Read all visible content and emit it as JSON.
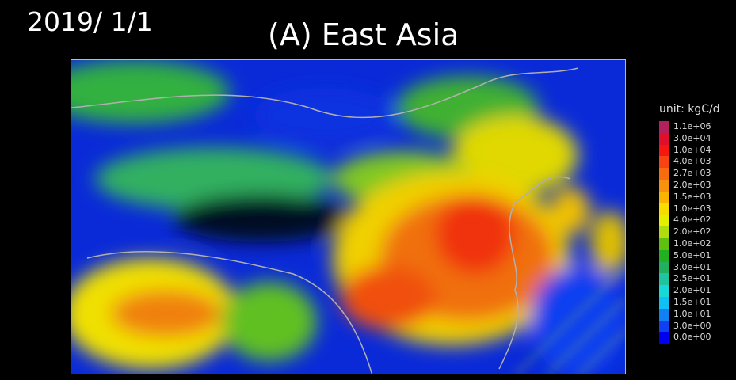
{
  "header": {
    "date": "2019/ 1/1",
    "title": "(A) East Asia"
  },
  "map": {
    "region": "East Asia",
    "background_color": "#0a2ad8",
    "boundary_color": "#b0b0b0"
  },
  "legend": {
    "title": "unit: kgC/d",
    "items": [
      {
        "label": "1.1e+06",
        "color": "#b3205c"
      },
      {
        "label": "3.0e+04",
        "color": "#e0102c"
      },
      {
        "label": "1.0e+04",
        "color": "#f51810"
      },
      {
        "label": "4.0e+03",
        "color": "#f84412"
      },
      {
        "label": "2.7e+03",
        "color": "#f86c10"
      },
      {
        "label": "2.0e+03",
        "color": "#f89010"
      },
      {
        "label": "1.5e+03",
        "color": "#f8b400"
      },
      {
        "label": "1.0e+03",
        "color": "#f8dc00"
      },
      {
        "label": "4.0e+02",
        "color": "#e4f000"
      },
      {
        "label": "2.0e+02",
        "color": "#b0dc10"
      },
      {
        "label": "1.0e+02",
        "color": "#60c010"
      },
      {
        "label": "5.0e+01",
        "color": "#20b020"
      },
      {
        "label": "3.0e+01",
        "color": "#20b060"
      },
      {
        "label": "2.5e+01",
        "color": "#20c4a0"
      },
      {
        "label": "2.0e+01",
        "color": "#18d8d8"
      },
      {
        "label": "1.5e+01",
        "color": "#10c0f4"
      },
      {
        "label": "1.0e+01",
        "color": "#1080f4"
      },
      {
        "label": "3.0e+00",
        "color": "#1040f0"
      },
      {
        "label": "0.0e+00",
        "color": "#0000f0"
      }
    ]
  }
}
